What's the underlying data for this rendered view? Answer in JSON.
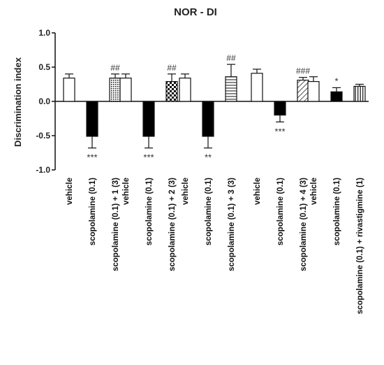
{
  "chart_data": {
    "type": "bar",
    "title": "NOR - DI",
    "xlabel": "",
    "ylabel": "Discrimination index",
    "ylim": [
      -1.0,
      1.0
    ],
    "yticks": [
      "1.0",
      "0.5",
      "0.0",
      "-0.5",
      "-1.0"
    ],
    "grid": false,
    "legend": "none",
    "groups": [
      {
        "bars": [
          {
            "label": "vehicle",
            "value": 0.34,
            "error": 0.06,
            "fill": "white",
            "annotation": ""
          },
          {
            "label": "scopolamine (0.1)",
            "value": -0.51,
            "error": 0.17,
            "fill": "black",
            "annotation": "***"
          },
          {
            "label": "scopolamine (0.1) + 1 (3)",
            "value": 0.34,
            "error": 0.06,
            "fill": "dots",
            "annotation": "##"
          }
        ]
      },
      {
        "bars": [
          {
            "label": "vehicle",
            "value": 0.34,
            "error": 0.06,
            "fill": "white",
            "annotation": ""
          },
          {
            "label": "scopolamine (0.1)",
            "value": -0.51,
            "error": 0.17,
            "fill": "black",
            "annotation": "***"
          },
          {
            "label": "scopolamine (0.1) + 2 (3)",
            "value": 0.29,
            "error": 0.11,
            "fill": "checker",
            "annotation": "##"
          }
        ]
      },
      {
        "bars": [
          {
            "label": "vehicle",
            "value": 0.34,
            "error": 0.06,
            "fill": "white",
            "annotation": ""
          },
          {
            "label": "scopolamine (0.1)",
            "value": -0.51,
            "error": 0.17,
            "fill": "black",
            "annotation": "**"
          },
          {
            "label": "scopolamine (0.1) + 3 (3)",
            "value": 0.36,
            "error": 0.18,
            "fill": "hlines",
            "annotation": "##"
          }
        ]
      },
      {
        "bars": [
          {
            "label": "vehicle",
            "value": 0.41,
            "error": 0.06,
            "fill": "white",
            "annotation": ""
          },
          {
            "label": "scopolamine (0.1)",
            "value": -0.2,
            "error": 0.1,
            "fill": "black",
            "annotation": "***"
          },
          {
            "label": "scopolamine (0.1) + 4 (3)",
            "value": 0.31,
            "error": 0.04,
            "fill": "diag",
            "annotation": "###"
          }
        ]
      },
      {
        "bars": [
          {
            "label": "vehicle",
            "value": 0.29,
            "error": 0.07,
            "fill": "white",
            "annotation": ""
          },
          {
            "label": "scopolamine (0.1)",
            "value": 0.14,
            "error": 0.06,
            "fill": "black",
            "annotation": "*"
          },
          {
            "label": "scopolamine (0.1) + rivastigmine (1)",
            "value": 0.22,
            "error": 0.03,
            "fill": "vlines",
            "annotation": ""
          }
        ]
      }
    ]
  }
}
